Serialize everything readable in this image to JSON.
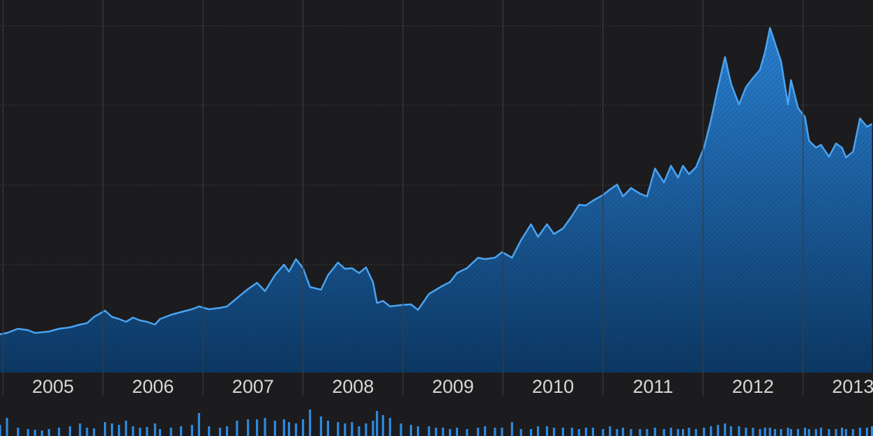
{
  "chart_data": {
    "type": "area",
    "x": [
      2004.97,
      2005.04,
      2005.15,
      2005.25,
      2005.32,
      2005.39,
      2005.46,
      2005.56,
      2005.67,
      2005.77,
      2005.84,
      2005.91,
      2006.02,
      2006.09,
      2006.16,
      2006.23,
      2006.3,
      2006.37,
      2006.44,
      2006.52,
      2006.57,
      2006.68,
      2006.78,
      2006.89,
      2006.96,
      2007.06,
      2007.17,
      2007.24,
      2007.34,
      2007.45,
      2007.54,
      2007.62,
      2007.72,
      2007.81,
      2007.86,
      2007.93,
      2008.0,
      2008.07,
      2008.18,
      2008.25,
      2008.35,
      2008.42,
      2008.49,
      2008.56,
      2008.63,
      2008.7,
      2008.74,
      2008.8,
      2008.87,
      2008.98,
      2009.08,
      2009.15,
      2009.26,
      2009.33,
      2009.4,
      2009.47,
      2009.54,
      2009.64,
      2009.75,
      2009.82,
      2009.92,
      2009.99,
      2010.09,
      2010.18,
      2010.28,
      2010.35,
      2010.44,
      2010.51,
      2010.6,
      2010.69,
      2010.76,
      2010.83,
      2010.9,
      2011.0,
      2011.07,
      2011.14,
      2011.2,
      2011.28,
      2011.37,
      2011.44,
      2011.52,
      2011.61,
      2011.68,
      2011.75,
      2011.8,
      2011.86,
      2011.93,
      2012.01,
      2012.08,
      2012.15,
      2012.22,
      2012.28,
      2012.36,
      2012.43,
      2012.5,
      2012.57,
      2012.62,
      2012.67,
      2012.72,
      2012.78,
      2012.85,
      2012.88,
      2012.95,
      2013.02,
      2013.06,
      2013.13,
      2013.18,
      2013.26,
      2013.33,
      2013.39,
      2013.43,
      2013.5,
      2013.57,
      2013.64,
      2013.69
    ],
    "values": [
      55,
      57,
      63,
      61,
      57,
      58,
      59,
      63,
      65,
      69,
      71,
      80,
      89,
      80,
      77,
      73,
      79,
      75,
      73,
      69,
      77,
      83,
      87,
      91,
      95,
      91,
      93,
      95,
      107,
      120,
      129,
      117,
      140,
      155,
      145,
      163,
      150,
      123,
      119,
      140,
      158,
      149,
      150,
      143,
      151,
      130,
      100,
      103,
      95,
      97,
      98,
      90,
      113,
      119,
      125,
      130,
      143,
      150,
      165,
      163,
      165,
      173,
      165,
      190,
      213,
      195,
      213,
      199,
      207,
      225,
      241,
      240,
      247,
      255,
      263,
      270,
      253,
      265,
      257,
      253,
      293,
      273,
      297,
      280,
      297,
      285,
      295,
      323,
      363,
      410,
      453,
      415,
      385,
      410,
      423,
      435,
      460,
      495,
      473,
      447,
      385,
      420,
      380,
      367,
      333,
      323,
      327,
      310,
      329,
      323,
      309,
      317,
      365,
      353,
      357
    ],
    "color": "#4aa3f0",
    "xlim": [
      2004.97,
      2013.7
    ],
    "ylim": [
      0,
      535
    ],
    "xticks": [
      {
        "value": 2005,
        "label": "2005"
      },
      {
        "value": 2006,
        "label": "2006"
      },
      {
        "value": 2007,
        "label": "2007"
      },
      {
        "value": 2008,
        "label": "2008"
      },
      {
        "value": 2009,
        "label": "2009"
      },
      {
        "value": 2010,
        "label": "2010"
      },
      {
        "value": 2011,
        "label": "2011"
      },
      {
        "value": 2012,
        "label": "2012"
      },
      {
        "value": 2013,
        "label": "2013"
      }
    ],
    "yticks": [
      155,
      269,
      384,
      498
    ],
    "grid": true,
    "volume": {
      "color": "#2e8ae0",
      "ylim": [
        0,
        42
      ],
      "values": [
        16,
        26,
        12,
        10,
        9,
        8,
        10,
        12,
        14,
        18,
        12,
        11,
        20,
        18,
        16,
        22,
        14,
        12,
        13,
        18,
        10,
        12,
        14,
        16,
        33,
        14,
        12,
        14,
        22,
        24,
        24,
        26,
        22,
        24,
        20,
        18,
        24,
        38,
        28,
        22,
        20,
        18,
        20,
        14,
        18,
        22,
        36,
        30,
        26,
        18,
        16,
        14,
        14,
        12,
        12,
        10,
        12,
        10,
        12,
        14,
        12,
        12,
        20,
        10,
        10,
        14,
        14,
        12,
        12,
        12,
        10,
        12,
        12,
        10,
        14,
        10,
        12,
        10,
        10,
        10,
        12,
        10,
        12,
        10,
        10,
        12,
        10,
        12,
        14,
        16,
        18,
        14,
        14,
        12,
        12,
        10,
        12,
        12,
        10,
        10,
        12,
        10,
        10,
        12,
        10,
        10,
        12,
        10,
        10,
        12,
        10,
        10,
        12,
        12,
        14
      ]
    }
  }
}
